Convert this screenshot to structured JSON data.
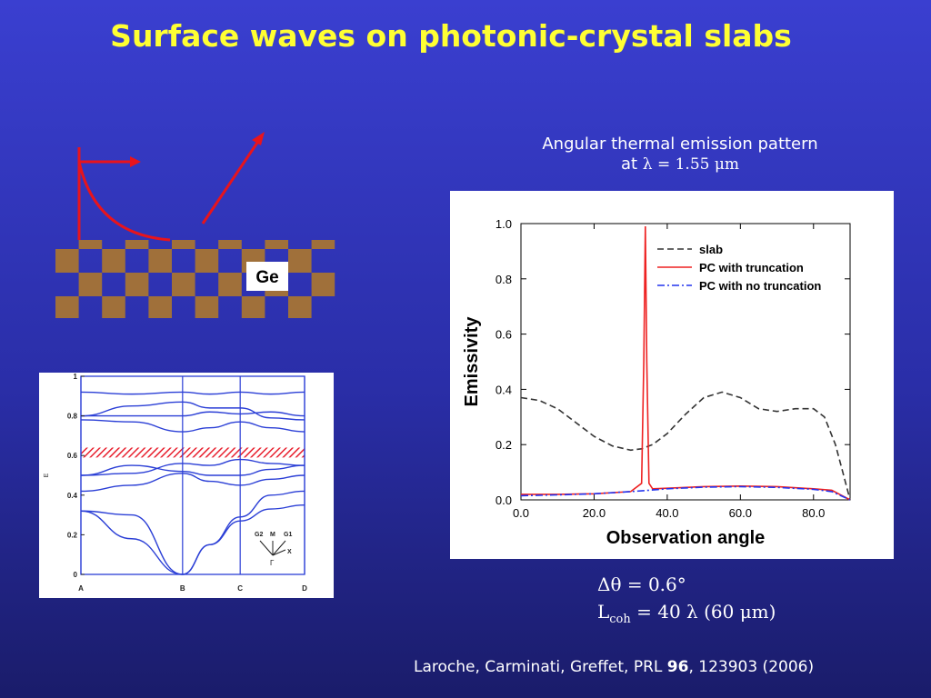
{
  "slide": {
    "title": "Surface waves on photonic-crystal slabs",
    "subtitle_line1": "Angular thermal emission pattern",
    "subtitle_at": "at",
    "subtitle_lambda": "λ = 1.55 μm",
    "material_label": "Ge",
    "eq1": "Δθ = 0.6°",
    "eq2_prefix": "L",
    "eq2_sub": "coh",
    "eq2_suffix": " = 40 λ  (60 μm)",
    "ref_prefix": "Laroche, Carminati, Greffet, PRL ",
    "ref_volume": "96",
    "ref_suffix": ", 123903 (2006)",
    "colors": {
      "title": "#ffff33",
      "crystal_block": "#a0703a",
      "arrow": "#e8141c",
      "band": "#2b3fd6",
      "gap_hatch": "#e8202e"
    }
  },
  "chart_data": [
    {
      "type": "line",
      "xlabel": "Observation angle",
      "ylabel": "Emissivity",
      "xlim": [
        0,
        90
      ],
      "ylim": [
        0,
        1
      ],
      "xticks": [
        "0.0",
        "20.0",
        "40.0",
        "60.0",
        "80.0"
      ],
      "yticks": [
        "0.0",
        "0.2",
        "0.4",
        "0.6",
        "0.8",
        "1.0"
      ],
      "legend_position": "top-right",
      "series": [
        {
          "name": "slab",
          "style": "dashed",
          "color": "#333333",
          "x": [
            0,
            5,
            10,
            15,
            20,
            25,
            30,
            33,
            36,
            40,
            45,
            50,
            55,
            60,
            65,
            70,
            75,
            80,
            83,
            86,
            88,
            90
          ],
          "y": [
            0.37,
            0.36,
            0.33,
            0.28,
            0.23,
            0.195,
            0.18,
            0.185,
            0.2,
            0.24,
            0.31,
            0.37,
            0.39,
            0.37,
            0.33,
            0.32,
            0.33,
            0.33,
            0.3,
            0.2,
            0.1,
            0.0
          ]
        },
        {
          "name": "PC with truncation",
          "style": "solid",
          "color": "#ee2222",
          "x": [
            0,
            10,
            20,
            30,
            33,
            33.6,
            34,
            34.4,
            35,
            36,
            40,
            50,
            60,
            70,
            80,
            85,
            90
          ],
          "y": [
            0.02,
            0.02,
            0.022,
            0.03,
            0.06,
            0.5,
            0.99,
            0.5,
            0.06,
            0.04,
            0.042,
            0.048,
            0.05,
            0.048,
            0.04,
            0.035,
            0.0
          ]
        },
        {
          "name": "PC with no truncation",
          "style": "dashdot",
          "color": "#2233ee",
          "x": [
            0,
            10,
            20,
            30,
            36,
            40,
            50,
            60,
            70,
            80,
            85,
            90
          ],
          "y": [
            0.015,
            0.018,
            0.022,
            0.03,
            0.036,
            0.04,
            0.046,
            0.048,
            0.045,
            0.038,
            0.03,
            0.0
          ]
        }
      ]
    },
    {
      "type": "line",
      "ylabel": "E",
      "ylim": [
        0,
        1
      ],
      "yticks": [
        "0",
        "0.2",
        "0.4",
        "0.6",
        "0.8",
        "1"
      ],
      "kpoints": [
        "A",
        "B",
        "C",
        "D"
      ],
      "kpos": [
        0,
        1.5,
        2.35,
        3.3
      ],
      "gap": [
        0.59,
        0.64
      ],
      "inset_labels": [
        "G2",
        "M",
        "G1",
        "X",
        "Γ"
      ],
      "bands": [
        {
          "x": [
            0,
            0.75,
            1.5,
            1.9,
            2.35,
            2.8,
            3.3
          ],
          "y": [
            0.32,
            0.18,
            0.0,
            0.15,
            0.27,
            0.33,
            0.35
          ]
        },
        {
          "x": [
            0,
            0.75,
            1.5,
            1.9,
            2.35,
            2.8,
            3.3
          ],
          "y": [
            0.32,
            0.3,
            0.0,
            0.15,
            0.29,
            0.4,
            0.42
          ]
        },
        {
          "x": [
            0,
            0.75,
            1.5,
            1.9,
            2.35,
            2.8,
            3.3
          ],
          "y": [
            0.42,
            0.45,
            0.51,
            0.47,
            0.45,
            0.48,
            0.5
          ]
        },
        {
          "x": [
            0,
            0.75,
            1.5,
            1.9,
            2.35,
            2.8,
            3.3
          ],
          "y": [
            0.5,
            0.55,
            0.52,
            0.5,
            0.5,
            0.53,
            0.55
          ]
        },
        {
          "x": [
            0,
            0.75,
            1.5,
            1.9,
            2.35,
            2.8,
            3.3
          ],
          "y": [
            0.5,
            0.51,
            0.56,
            0.55,
            0.58,
            0.56,
            0.55
          ]
        },
        {
          "x": [
            0,
            0.75,
            1.5,
            1.9,
            2.35,
            2.8,
            3.3
          ],
          "y": [
            0.78,
            0.77,
            0.72,
            0.74,
            0.77,
            0.74,
            0.72
          ]
        },
        {
          "x": [
            0,
            0.75,
            1.5,
            1.9,
            2.35,
            2.8,
            3.3
          ],
          "y": [
            0.8,
            0.85,
            0.87,
            0.84,
            0.84,
            0.79,
            0.78
          ]
        },
        {
          "x": [
            0,
            0.75,
            1.5,
            1.9,
            2.35,
            2.8,
            3.3
          ],
          "y": [
            0.8,
            0.8,
            0.8,
            0.82,
            0.81,
            0.82,
            0.8
          ]
        },
        {
          "x": [
            0,
            0.75,
            1.5,
            1.9,
            2.35,
            2.8,
            3.3
          ],
          "y": [
            0.92,
            0.91,
            0.92,
            0.91,
            0.92,
            0.91,
            0.92
          ]
        }
      ]
    }
  ]
}
